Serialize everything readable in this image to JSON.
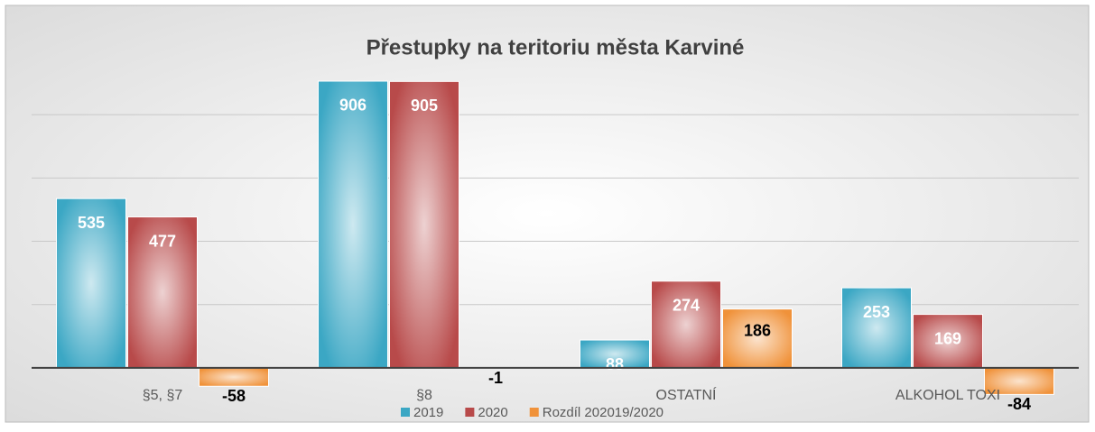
{
  "chart_data": {
    "type": "bar",
    "title": "Přestupky na teritoriu města Karviné",
    "categories": [
      "§5, §7",
      "§8",
      "OSTATNÍ",
      "ALKOHOL TOXI"
    ],
    "series": [
      {
        "name": "2019",
        "color": "#3ba7c4",
        "values": [
          535,
          906,
          88,
          253
        ]
      },
      {
        "name": "2020",
        "color": "#b84a4a",
        "values": [
          477,
          905,
          274,
          169
        ]
      },
      {
        "name": "Rozdíl 202019/2020",
        "color": "#f0923a",
        "values": [
          -58,
          -1,
          186,
          -84
        ]
      }
    ],
    "ylim": [
      -100,
      1000
    ],
    "yticks": [
      0,
      200,
      400,
      600,
      800
    ],
    "grid": true,
    "legend": "bottom"
  }
}
